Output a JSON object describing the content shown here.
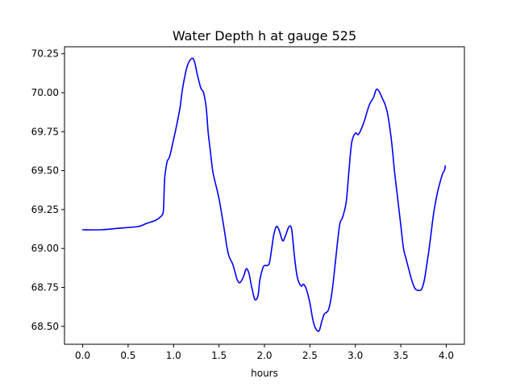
{
  "chart_data": {
    "type": "line",
    "title": "Water Depth h at gauge 525",
    "xlabel": "hours",
    "ylabel": "",
    "xlim": [
      -0.2,
      4.2
    ],
    "ylim": [
      68.385,
      70.295
    ],
    "xticks": [
      0.0,
      0.5,
      1.0,
      1.5,
      2.0,
      2.5,
      3.0,
      3.5,
      4.0
    ],
    "xtick_labels": [
      "0.0",
      "0.5",
      "1.0",
      "1.5",
      "2.0",
      "2.5",
      "3.0",
      "3.5",
      "4.0"
    ],
    "yticks": [
      68.5,
      68.75,
      69.0,
      69.25,
      69.5,
      69.75,
      70.0,
      70.25
    ],
    "ytick_labels": [
      "68.50",
      "68.75",
      "69.00",
      "69.25",
      "69.50",
      "69.75",
      "70.00",
      "70.25"
    ],
    "grid": false,
    "legend": "none",
    "series": [
      {
        "color": "#0000ff",
        "x": [
          0.0,
          0.2,
          0.4,
          0.6,
          0.66,
          0.7,
          0.8,
          0.85,
          0.88,
          0.89,
          0.9,
          0.91,
          0.93,
          0.95,
          0.97,
          1.0,
          1.03,
          1.07,
          1.1,
          1.15,
          1.2,
          1.23,
          1.26,
          1.3,
          1.33,
          1.36,
          1.38,
          1.4,
          1.43,
          1.46,
          1.5,
          1.55,
          1.6,
          1.65,
          1.68,
          1.7,
          1.73,
          1.77,
          1.8,
          1.83,
          1.85,
          1.88,
          1.9,
          1.93,
          1.95,
          1.98,
          2.0,
          2.05,
          2.08,
          2.1,
          2.13,
          2.16,
          2.2,
          2.23,
          2.27,
          2.3,
          2.33,
          2.36,
          2.4,
          2.43,
          2.46,
          2.5,
          2.53,
          2.56,
          2.6,
          2.63,
          2.66,
          2.7,
          2.73,
          2.76,
          2.8,
          2.83,
          2.86,
          2.9,
          2.93,
          2.96,
          3.0,
          3.03,
          3.06,
          3.1,
          3.13,
          3.16,
          3.2,
          3.23,
          3.26,
          3.3,
          3.33,
          3.36,
          3.4,
          3.43,
          3.46,
          3.5,
          3.53,
          3.56,
          3.6,
          3.63,
          3.66,
          3.7,
          3.73,
          3.76,
          3.8,
          3.83,
          3.86,
          3.9,
          3.93,
          3.96,
          3.98,
          3.99
        ],
        "y": [
          69.12,
          69.12,
          69.13,
          69.14,
          69.15,
          69.16,
          69.18,
          69.2,
          69.22,
          69.26,
          69.43,
          69.49,
          69.56,
          69.58,
          69.62,
          69.7,
          69.78,
          69.9,
          70.03,
          70.17,
          70.22,
          70.2,
          70.12,
          70.03,
          70.0,
          69.9,
          69.75,
          69.65,
          69.5,
          69.42,
          69.32,
          69.15,
          68.97,
          68.9,
          68.84,
          68.8,
          68.78,
          68.82,
          68.87,
          68.84,
          68.78,
          68.7,
          68.67,
          68.7,
          68.8,
          68.87,
          68.89,
          68.9,
          69.0,
          69.08,
          69.14,
          69.12,
          69.05,
          69.08,
          69.14,
          69.12,
          68.95,
          68.82,
          68.76,
          68.77,
          68.74,
          68.65,
          68.55,
          68.49,
          68.47,
          68.53,
          68.58,
          68.6,
          68.67,
          68.8,
          69.02,
          69.16,
          69.2,
          69.3,
          69.5,
          69.68,
          69.74,
          69.73,
          69.76,
          69.82,
          69.88,
          69.93,
          69.97,
          70.02,
          70.01,
          69.96,
          69.92,
          69.85,
          69.68,
          69.5,
          69.35,
          69.15,
          69.0,
          68.93,
          68.84,
          68.78,
          68.74,
          68.73,
          68.74,
          68.8,
          68.95,
          69.08,
          69.22,
          69.35,
          69.42,
          69.48,
          69.5,
          69.53
        ]
      }
    ]
  }
}
